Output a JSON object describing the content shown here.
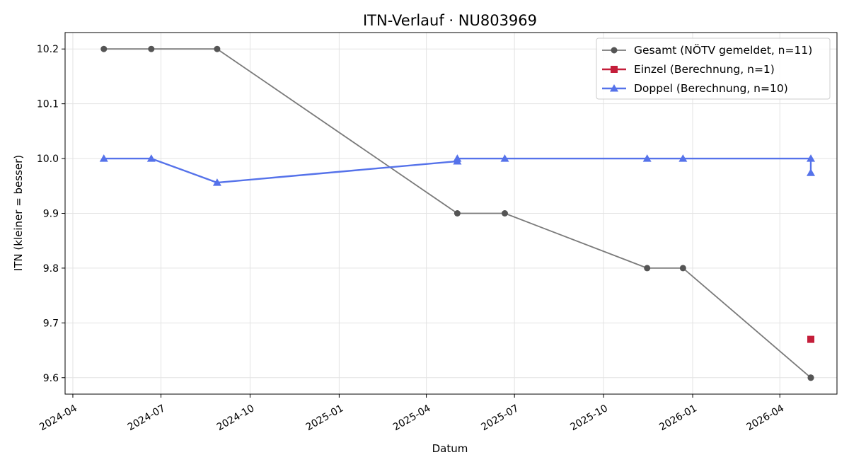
{
  "chart_data": {
    "type": "line",
    "title": "ITN-Verlauf · NU803969",
    "xlabel": "Datum",
    "ylabel": "ITN  (kleiner = besser)",
    "xlim": [
      "2024-03-24",
      "2026-05-30"
    ],
    "ylim": [
      9.57,
      10.23
    ],
    "x_ticks": [
      "2024-04",
      "2024-07",
      "2024-10",
      "2025-01",
      "2025-04",
      "2025-07",
      "2025-10",
      "2026-01",
      "2026-04"
    ],
    "x_tick_dates": [
      "2024-04-01",
      "2024-07-01",
      "2024-10-01",
      "2025-01-01",
      "2025-04-01",
      "2025-07-01",
      "2025-10-01",
      "2026-01-01",
      "2026-04-01"
    ],
    "y_ticks": [
      9.6,
      9.7,
      9.8,
      9.9,
      10.0,
      10.1,
      10.2
    ],
    "grid": true,
    "legend_position": "top-right",
    "series": [
      {
        "name": "Gesamt (NÖTV gemeldet, n=11)",
        "color": "#7a7a7a",
        "marker_color": "#555555",
        "marker": "circle",
        "points": [
          {
            "x": "2024-05-03",
            "y": 10.2
          },
          {
            "x": "2024-06-21",
            "y": 10.2
          },
          {
            "x": "2024-08-28",
            "y": 10.2
          },
          {
            "x": "2025-05-03",
            "y": 9.9
          },
          {
            "x": "2025-06-21",
            "y": 9.9
          },
          {
            "x": "2025-11-15",
            "y": 9.8
          },
          {
            "x": "2025-12-22",
            "y": 9.8
          },
          {
            "x": "2026-05-03",
            "y": 9.6
          },
          {
            "x": "2026-05-03",
            "y": 9.6
          }
        ]
      },
      {
        "name": "Einzel (Berechnung, n=1)",
        "color": "#c41e3a",
        "marker": "square",
        "points": [
          {
            "x": "2026-05-03",
            "y": 9.67
          }
        ]
      },
      {
        "name": "Doppel (Berechnung, n=10)",
        "color": "#5572ea",
        "marker": "triangle",
        "points": [
          {
            "x": "2024-05-03",
            "y": 10.0
          },
          {
            "x": "2024-06-21",
            "y": 10.0
          },
          {
            "x": "2024-08-28",
            "y": 9.956
          },
          {
            "x": "2025-05-03",
            "y": 9.995
          },
          {
            "x": "2025-05-03",
            "y": 10.0
          },
          {
            "x": "2025-06-21",
            "y": 10.0
          },
          {
            "x": "2025-11-15",
            "y": 10.0
          },
          {
            "x": "2025-12-22",
            "y": 10.0
          },
          {
            "x": "2026-05-03",
            "y": 10.0
          },
          {
            "x": "2026-05-03",
            "y": 9.974
          }
        ]
      }
    ]
  }
}
